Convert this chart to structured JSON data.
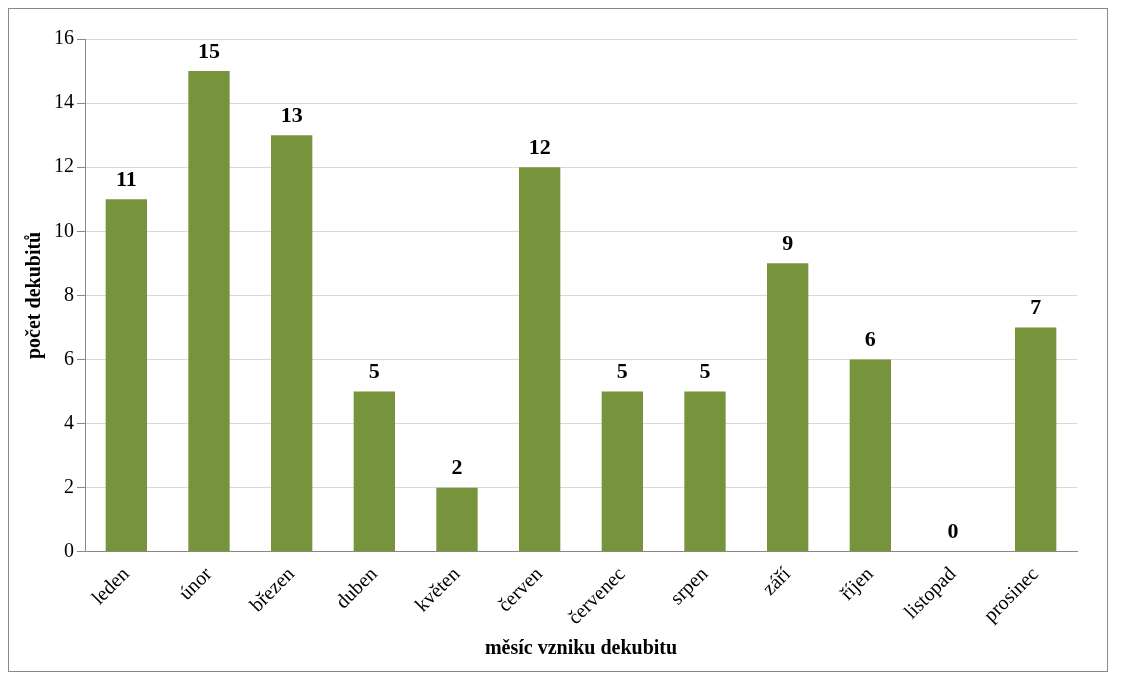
{
  "chart_data": {
    "type": "bar",
    "xlabel": "měsíc vzniku dekubitu",
    "ylabel": "počet dekubitů",
    "categories": [
      "leden",
      "únor",
      "březen",
      "duben",
      "květen",
      "červen",
      "červenec",
      "srpen",
      "září",
      "říjen",
      "listopad",
      "prosinec"
    ],
    "values": [
      11,
      15,
      13,
      5,
      2,
      12,
      5,
      5,
      9,
      6,
      0,
      7
    ],
    "color": "#77933c",
    "ylim": [
      0,
      16
    ],
    "yticks": [
      0,
      2,
      4,
      6,
      8,
      10,
      12,
      14,
      16
    ],
    "grid": "y",
    "data_labels": true,
    "legend": false
  }
}
